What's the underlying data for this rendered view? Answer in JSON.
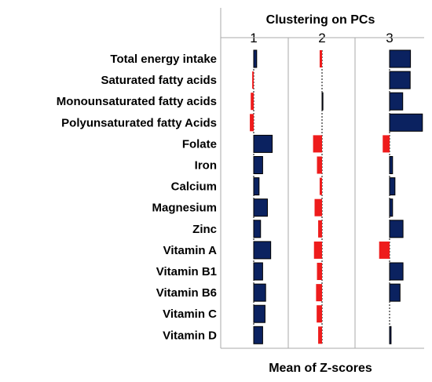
{
  "chart_data": {
    "type": "bar",
    "orientation": "horizontal",
    "title": "Clustering on PCs",
    "xlabel": "Mean of Z-scores",
    "clusters": [
      "1",
      "2",
      "3"
    ],
    "categories": [
      "Total energy intake",
      "Saturated fatty acids",
      "Monounsaturated fatty acids",
      "Polyunsaturated fatty Acids",
      "Folate",
      "Iron",
      "Calcium",
      "Magnesium",
      "Zinc",
      "Vitamin A",
      "Vitamin B1",
      "Vitamin B6",
      "Vitamin C",
      "Vitamin D"
    ],
    "series": [
      {
        "cluster": "1",
        "values": [
          0.1,
          -0.05,
          -0.1,
          -0.13,
          0.62,
          0.3,
          0.18,
          0.46,
          0.23,
          0.57,
          0.3,
          0.4,
          0.38,
          0.3
        ]
      },
      {
        "cluster": "2",
        "values": [
          -0.08,
          0.0,
          0.03,
          0.0,
          -0.3,
          -0.17,
          -0.08,
          -0.25,
          -0.13,
          -0.27,
          -0.17,
          -0.2,
          -0.18,
          -0.13
        ]
      },
      {
        "cluster": "3",
        "values": [
          0.7,
          0.69,
          0.44,
          1.1,
          -0.23,
          0.1,
          0.18,
          0.1,
          0.45,
          -0.35,
          0.45,
          0.35,
          0.0,
          0.05
        ]
      }
    ],
    "positive_color": "#0b2260",
    "negative_color": "#ee1c1c",
    "grid": false
  }
}
